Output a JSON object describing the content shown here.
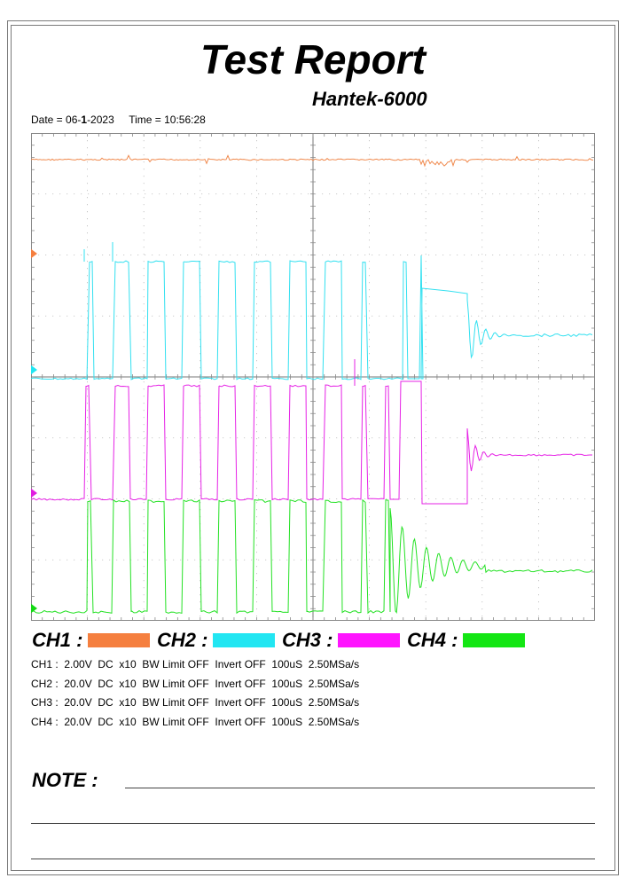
{
  "report": {
    "title": "Test Report",
    "model": "Hantek-6000",
    "date_label": "Date = ",
    "date_prefix": "06-",
    "date_bold": "1",
    "date_suffix": "-2023",
    "time_label": "Time = ",
    "time_value": "10:56:28"
  },
  "legend": [
    {
      "label": "CH1 :",
      "color": "#ff8c4b"
    },
    {
      "label": "CH2 :",
      "color": "#28e8f5"
    },
    {
      "label": "CH3 :",
      "color": "#ff14ff"
    },
    {
      "label": "CH4 :",
      "color": "#14e614"
    }
  ],
  "settings": [
    "CH1 :  2.00V  DC  x10  BW Limit OFF  Invert OFF  100uS  2.50MSa/s",
    "CH2 :  20.0V  DC  x10  BW Limit OFF  Invert OFF  100uS  2.50MSa/s",
    "CH3 :  20.0V  DC  x10  BW Limit OFF  Invert OFF  100uS  2.50MSa/s",
    "CH4 :  20.0V  DC  x10  BW Limit OFF  Invert OFF  100uS  2.50MSa/s"
  ],
  "note": {
    "label": "NOTE :"
  },
  "colors": {
    "ch1": "#f08a4e",
    "ch2": "#32e0f0",
    "ch3": "#e623e6",
    "ch4": "#23e123",
    "grid": "#808080"
  }
}
